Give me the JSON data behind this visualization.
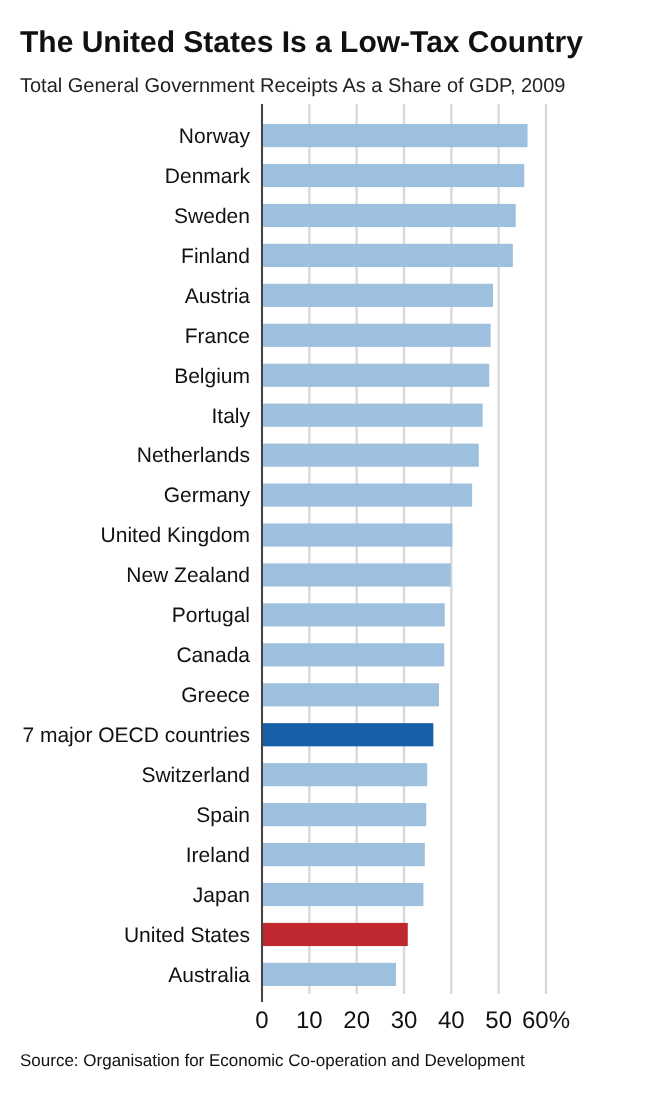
{
  "chart_data": {
    "type": "bar",
    "orientation": "horizontal",
    "title": "The United States Is a Low-Tax Country",
    "subtitle": "Total General Government Receipts As a Share of GDP, 2009",
    "categories": [
      "Norway",
      "Denmark",
      "Sweden",
      "Finland",
      "Austria",
      "France",
      "Belgium",
      "Italy",
      "Netherlands",
      "Germany",
      "United Kingdom",
      "New Zealand",
      "Portugal",
      "Canada",
      "Greece",
      "7 major OECD countries",
      "Switzerland",
      "Spain",
      "Ireland",
      "Japan",
      "United States",
      "Australia"
    ],
    "values": [
      56.1,
      55.4,
      53.6,
      53.0,
      48.8,
      48.3,
      48.0,
      46.6,
      45.8,
      44.4,
      40.2,
      39.9,
      38.6,
      38.5,
      37.4,
      36.2,
      34.9,
      34.7,
      34.4,
      34.1,
      30.8,
      28.3
    ],
    "colors": [
      "#9dc0de",
      "#9dc0de",
      "#9dc0de",
      "#9dc0de",
      "#9dc0de",
      "#9dc0de",
      "#9dc0de",
      "#9dc0de",
      "#9dc0de",
      "#9dc0de",
      "#9dc0de",
      "#9dc0de",
      "#9dc0de",
      "#9dc0de",
      "#9dc0de",
      "#1560a6",
      "#9dc0de",
      "#9dc0de",
      "#9dc0de",
      "#9dc0de",
      "#c0282f",
      "#9dc0de"
    ],
    "xlim": [
      0,
      60
    ],
    "xticks": [
      0,
      10,
      20,
      30,
      40,
      50,
      {
        "value": 60,
        "label": "60%"
      }
    ],
    "grid": "x",
    "annotations": [
      "Source: Organisation for Economic Co-operation and Development"
    ]
  }
}
